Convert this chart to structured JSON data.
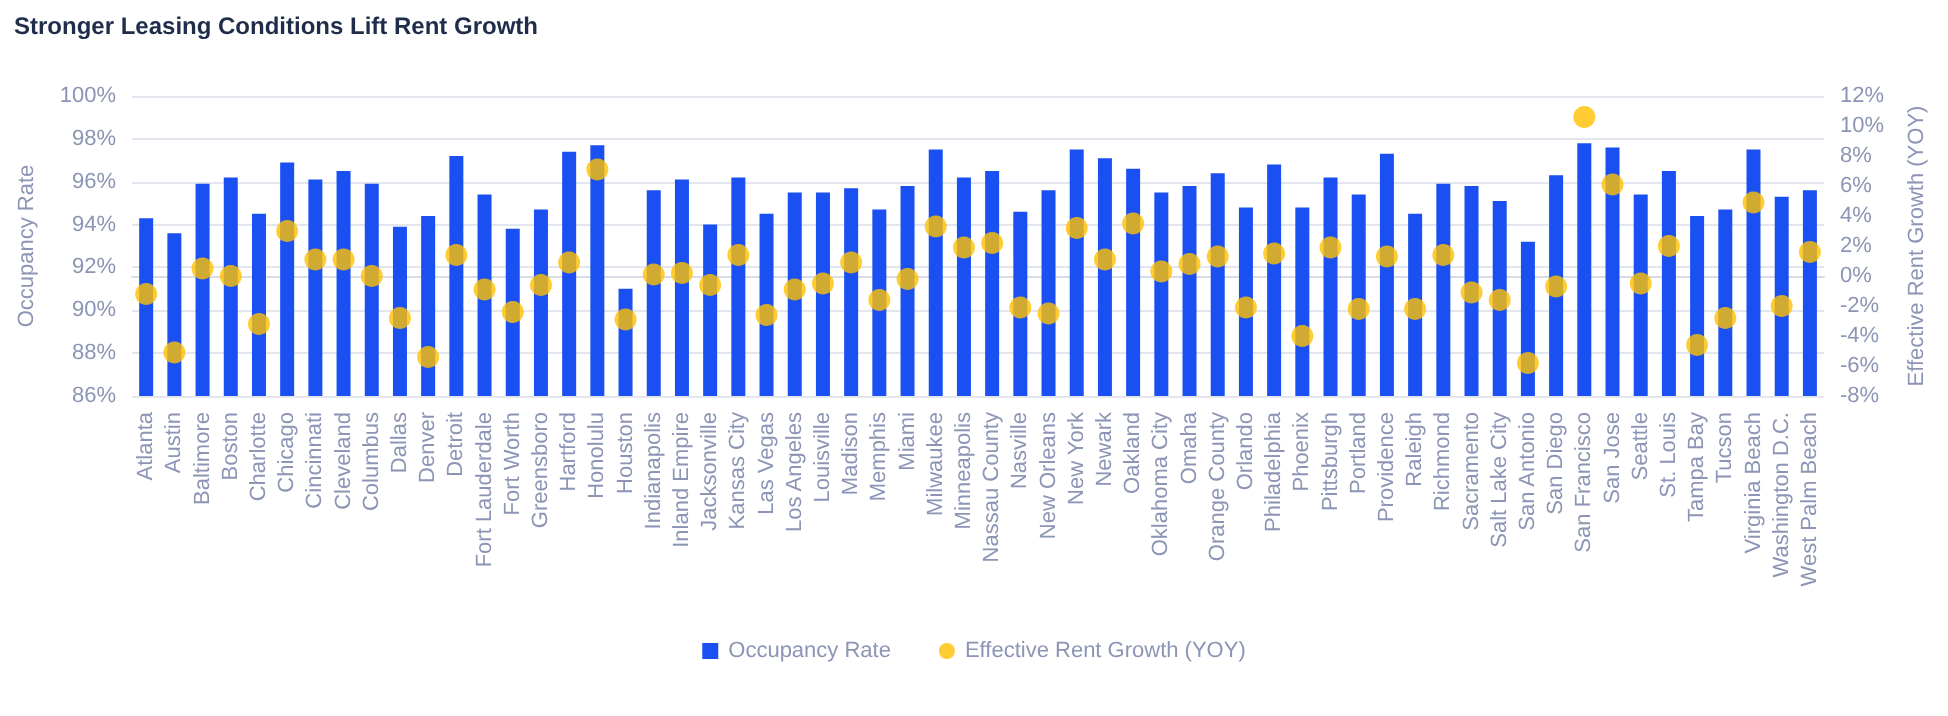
{
  "chart_data": {
    "type": "bar",
    "title": "Stronger Leasing Conditions Lift Rent Growth",
    "ylabel": "Occupancy Rate",
    "y2label": "Effective Rent Growth (YOY)",
    "categories": [
      "Atlanta",
      "Austin",
      "Baltimore",
      "Boston",
      "Charlotte",
      "Chicago",
      "Cincinnati",
      "Cleveland",
      "Columbus",
      "Dallas",
      "Denver",
      "Detroit",
      "Fort Lauderdale",
      "Fort Worth",
      "Greensboro",
      "Hartford",
      "Honolulu",
      "Houston",
      "Indianapolis",
      "Inland Empire",
      "Jacksonville",
      "Kansas City",
      "Las Vegas",
      "Los Angeles",
      "Louisville",
      "Madison",
      "Memphis",
      "Miami",
      "Milwaukee",
      "Minneapolis",
      "Nassau County",
      "Nasville",
      "New Orleans",
      "New York",
      "Newark",
      "Oakland",
      "Oklahoma City",
      "Omaha",
      "Orange County",
      "Orlando",
      "Philadelphia",
      "Phoenix",
      "Pittsburgh",
      "Portland",
      "Providence",
      "Raleigh",
      "Richmond",
      "Sacramento",
      "Salt Lake City",
      "San Antonio",
      "San Diego",
      "San Francisco",
      "San Jose",
      "Seattle",
      "St. Louis",
      "Tampa Bay",
      "Tucson",
      "Virginia Beach",
      "Washington D.C.",
      "West Palm Beach"
    ],
    "series": [
      {
        "name": "Occupancy Rate",
        "color": "#1a4ff2",
        "values": [
          94.3,
          93.6,
          95.9,
          96.2,
          94.5,
          96.9,
          96.1,
          96.5,
          95.9,
          93.9,
          94.4,
          97.2,
          95.4,
          93.8,
          94.7,
          97.4,
          97.7,
          91.0,
          95.6,
          96.1,
          94.0,
          96.2,
          94.5,
          95.5,
          95.5,
          95.7,
          94.7,
          95.8,
          97.5,
          96.2,
          96.5,
          94.6,
          95.6,
          97.5,
          97.1,
          96.6,
          95.5,
          95.8,
          96.4,
          94.8,
          96.8,
          94.8,
          96.2,
          95.4,
          97.3,
          94.5,
          95.9,
          95.8,
          95.1,
          93.2,
          96.3,
          97.8,
          97.6,
          95.4,
          96.5,
          94.4,
          94.7,
          97.5,
          95.3,
          95.6
        ]
      },
      {
        "name": "Effective Rent Growth (YOY)",
        "type": "scatter",
        "axis": "y2",
        "color": "#ffc000",
        "values": [
          -1.2,
          -5.1,
          0.5,
          0.0,
          -3.2,
          3.0,
          1.1,
          1.1,
          0.0,
          -2.8,
          -5.4,
          1.4,
          -0.9,
          -2.4,
          -0.6,
          0.9,
          7.1,
          -2.9,
          0.1,
          0.2,
          -0.6,
          1.4,
          -2.6,
          -0.9,
          -0.5,
          0.9,
          -1.6,
          -0.2,
          3.3,
          1.9,
          2.2,
          -2.1,
          -2.5,
          3.2,
          1.1,
          3.5,
          0.3,
          0.8,
          1.3,
          -2.1,
          1.5,
          -4.0,
          1.9,
          -2.2,
          1.3,
          -2.2,
          1.4,
          -1.1,
          -1.6,
          -5.8,
          -0.7,
          10.6,
          6.1,
          -0.5,
          2.0,
          -4.6,
          -2.8,
          4.9,
          -2.0,
          1.6
        ]
      }
    ],
    "ylim": [
      86,
      100
    ],
    "yticks": [
      {
        "value": 86,
        "label": "86%"
      },
      {
        "value": 88,
        "label": "88%"
      },
      {
        "value": 90,
        "label": "90%"
      },
      {
        "value": 92,
        "label": "92%"
      },
      {
        "value": 94,
        "label": "94%"
      },
      {
        "value": 96,
        "label": "96%"
      },
      {
        "value": 98,
        "label": "98%"
      },
      {
        "value": 100,
        "label": "100%"
      }
    ],
    "y2lim": [
      -8,
      12
    ],
    "y2ticks": [
      {
        "value": -8,
        "label": "-8%"
      },
      {
        "value": -6,
        "label": "-6%"
      },
      {
        "value": -4,
        "label": "-4%"
      },
      {
        "value": -2,
        "label": "-2%"
      },
      {
        "value": 0,
        "label": "0%"
      },
      {
        "value": 2,
        "label": "2%"
      },
      {
        "value": 4,
        "label": "4%"
      },
      {
        "value": 6,
        "label": "6%"
      },
      {
        "value": 8,
        "label": "8%"
      },
      {
        "value": 10,
        "label": "10%"
      },
      {
        "value": 12,
        "label": "12%"
      }
    ],
    "grid": "y",
    "legend": "bottom",
    "marker": "circle"
  }
}
